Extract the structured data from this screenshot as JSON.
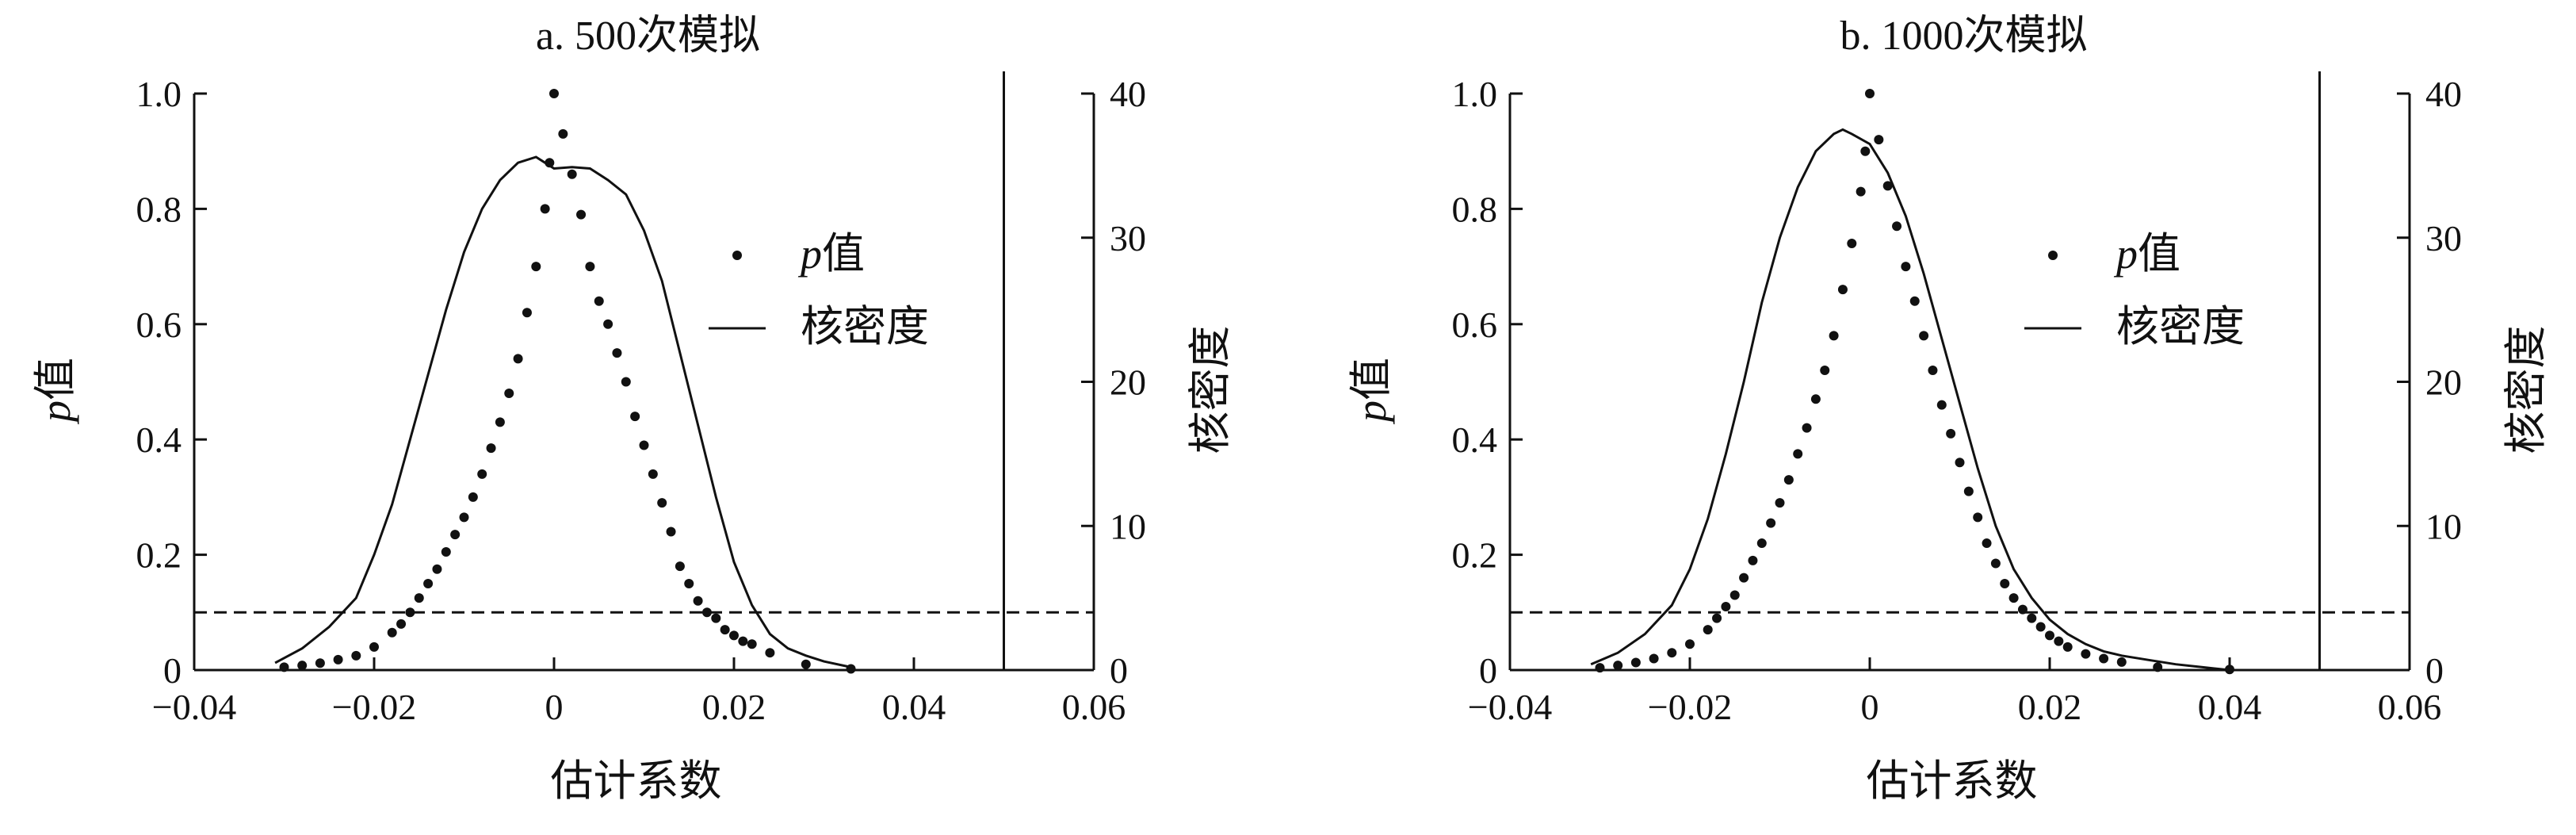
{
  "chart_data": [
    {
      "type": "scatter",
      "title": "a. 500次模拟",
      "xlabel": "估计系数",
      "ylabel_left_italic": "p",
      "ylabel_left_rest": "值",
      "ylabel_right": "核密度",
      "xlim": [
        -0.04,
        0.06
      ],
      "ylim_left": [
        0,
        1.0
      ],
      "ylim_right": [
        0,
        40
      ],
      "x_ticks": [
        "−0.04",
        "−0.02",
        "0",
        "0.02",
        "0.04",
        "0.06"
      ],
      "x_tick_values": [
        -0.04,
        -0.02,
        0,
        0.02,
        0.04,
        0.06
      ],
      "y_ticks_left": [
        "0",
        "0.2",
        "0.4",
        "0.6",
        "0.8",
        "1.0"
      ],
      "y_tick_values_left": [
        0,
        0.2,
        0.4,
        0.6,
        0.8,
        1.0
      ],
      "y_ticks_right": [
        "0",
        "10",
        "20",
        "30",
        "40"
      ],
      "y_tick_values_right": [
        0,
        10,
        20,
        30,
        40
      ],
      "reference_hline_p": 0.1,
      "reference_vline_x": 0.05,
      "legend_position": "right",
      "series": [
        {
          "name": "值",
          "name_italic_prefix": "p",
          "kind": "scatter",
          "axis": "left",
          "points": [
            [
              -0.03,
              0.005
            ],
            [
              -0.028,
              0.008
            ],
            [
              -0.026,
              0.012
            ],
            [
              -0.024,
              0.018
            ],
            [
              -0.022,
              0.025
            ],
            [
              -0.02,
              0.04
            ],
            [
              -0.018,
              0.065
            ],
            [
              -0.017,
              0.08
            ],
            [
              -0.016,
              0.1
            ],
            [
              -0.015,
              0.125
            ],
            [
              -0.014,
              0.15
            ],
            [
              -0.013,
              0.175
            ],
            [
              -0.012,
              0.205
            ],
            [
              -0.011,
              0.235
            ],
            [
              -0.01,
              0.265
            ],
            [
              -0.009,
              0.3
            ],
            [
              -0.008,
              0.34
            ],
            [
              -0.007,
              0.385
            ],
            [
              -0.006,
              0.43
            ],
            [
              -0.005,
              0.48
            ],
            [
              -0.004,
              0.54
            ],
            [
              -0.003,
              0.62
            ],
            [
              -0.002,
              0.7
            ],
            [
              -0.001,
              0.8
            ],
            [
              -0.0005,
              0.88
            ],
            [
              0.0,
              1.0
            ],
            [
              0.001,
              0.93
            ],
            [
              0.002,
              0.86
            ],
            [
              0.003,
              0.79
            ],
            [
              0.004,
              0.7
            ],
            [
              0.005,
              0.64
            ],
            [
              0.006,
              0.6
            ],
            [
              0.007,
              0.55
            ],
            [
              0.008,
              0.5
            ],
            [
              0.009,
              0.44
            ],
            [
              0.01,
              0.39
            ],
            [
              0.011,
              0.34
            ],
            [
              0.012,
              0.29
            ],
            [
              0.013,
              0.24
            ],
            [
              0.014,
              0.18
            ],
            [
              0.015,
              0.15
            ],
            [
              0.016,
              0.12
            ],
            [
              0.017,
              0.1
            ],
            [
              0.018,
              0.09
            ],
            [
              0.019,
              0.07
            ],
            [
              0.02,
              0.06
            ],
            [
              0.021,
              0.05
            ],
            [
              0.022,
              0.045
            ],
            [
              0.024,
              0.03
            ],
            [
              0.028,
              0.01
            ],
            [
              0.033,
              0.002
            ]
          ]
        },
        {
          "name": "核密度",
          "kind": "line",
          "axis": "right",
          "points": [
            [
              -0.031,
              0.5
            ],
            [
              -0.028,
              1.5
            ],
            [
              -0.025,
              3.0
            ],
            [
              -0.022,
              5.0
            ],
            [
              -0.02,
              8.0
            ],
            [
              -0.018,
              11.5
            ],
            [
              -0.016,
              16.0
            ],
            [
              -0.014,
              20.5
            ],
            [
              -0.012,
              25.0
            ],
            [
              -0.01,
              29.0
            ],
            [
              -0.008,
              32.0
            ],
            [
              -0.006,
              34.0
            ],
            [
              -0.004,
              35.2
            ],
            [
              -0.002,
              35.6
            ],
            [
              -0.001,
              35.2
            ],
            [
              0.0,
              34.8
            ],
            [
              0.002,
              34.9
            ],
            [
              0.004,
              34.8
            ],
            [
              0.006,
              34.0
            ],
            [
              0.008,
              33.0
            ],
            [
              0.01,
              30.5
            ],
            [
              0.012,
              27.0
            ],
            [
              0.014,
              22.0
            ],
            [
              0.016,
              17.0
            ],
            [
              0.018,
              12.0
            ],
            [
              0.02,
              7.5
            ],
            [
              0.022,
              4.5
            ],
            [
              0.024,
              2.5
            ],
            [
              0.026,
              1.5
            ],
            [
              0.028,
              1.0
            ],
            [
              0.03,
              0.6
            ],
            [
              0.033,
              0.2
            ]
          ]
        }
      ]
    },
    {
      "type": "scatter",
      "title": "b. 1000次模拟",
      "xlabel": "估计系数",
      "ylabel_left_italic": "p",
      "ylabel_left_rest": "值",
      "ylabel_right": "核密度",
      "xlim": [
        -0.04,
        0.06
      ],
      "ylim_left": [
        0,
        1.0
      ],
      "ylim_right": [
        0,
        40
      ],
      "x_ticks": [
        "−0.04",
        "−0.02",
        "0",
        "0.02",
        "0.04",
        "0.06"
      ],
      "x_tick_values": [
        -0.04,
        -0.02,
        0,
        0.02,
        0.04,
        0.06
      ],
      "y_ticks_left": [
        "0",
        "0.2",
        "0.4",
        "0.6",
        "0.8",
        "1.0"
      ],
      "y_tick_values_left": [
        0,
        0.2,
        0.4,
        0.6,
        0.8,
        1.0
      ],
      "y_ticks_right": [
        "0",
        "10",
        "20",
        "30",
        "40"
      ],
      "y_tick_values_right": [
        0,
        10,
        20,
        30,
        40
      ],
      "reference_hline_p": 0.1,
      "reference_vline_x": 0.05,
      "legend_position": "right",
      "series": [
        {
          "name": "值",
          "name_italic_prefix": "p",
          "kind": "scatter",
          "axis": "left",
          "points": [
            [
              -0.03,
              0.004
            ],
            [
              -0.028,
              0.008
            ],
            [
              -0.026,
              0.013
            ],
            [
              -0.024,
              0.02
            ],
            [
              -0.022,
              0.03
            ],
            [
              -0.02,
              0.045
            ],
            [
              -0.018,
              0.07
            ],
            [
              -0.017,
              0.09
            ],
            [
              -0.016,
              0.11
            ],
            [
              -0.015,
              0.13
            ],
            [
              -0.014,
              0.16
            ],
            [
              -0.013,
              0.19
            ],
            [
              -0.012,
              0.22
            ],
            [
              -0.011,
              0.255
            ],
            [
              -0.01,
              0.29
            ],
            [
              -0.009,
              0.33
            ],
            [
              -0.008,
              0.375
            ],
            [
              -0.007,
              0.42
            ],
            [
              -0.006,
              0.47
            ],
            [
              -0.005,
              0.52
            ],
            [
              -0.004,
              0.58
            ],
            [
              -0.003,
              0.66
            ],
            [
              -0.002,
              0.74
            ],
            [
              -0.001,
              0.83
            ],
            [
              -0.0005,
              0.9
            ],
            [
              0.0,
              1.0
            ],
            [
              0.001,
              0.92
            ],
            [
              0.002,
              0.84
            ],
            [
              0.003,
              0.77
            ],
            [
              0.004,
              0.7
            ],
            [
              0.005,
              0.64
            ],
            [
              0.006,
              0.58
            ],
            [
              0.007,
              0.52
            ],
            [
              0.008,
              0.46
            ],
            [
              0.009,
              0.41
            ],
            [
              0.01,
              0.36
            ],
            [
              0.011,
              0.31
            ],
            [
              0.012,
              0.265
            ],
            [
              0.013,
              0.22
            ],
            [
              0.014,
              0.185
            ],
            [
              0.015,
              0.15
            ],
            [
              0.016,
              0.125
            ],
            [
              0.017,
              0.105
            ],
            [
              0.018,
              0.09
            ],
            [
              0.019,
              0.075
            ],
            [
              0.02,
              0.06
            ],
            [
              0.021,
              0.05
            ],
            [
              0.022,
              0.04
            ],
            [
              0.024,
              0.028
            ],
            [
              0.026,
              0.02
            ],
            [
              0.028,
              0.014
            ],
            [
              0.032,
              0.005
            ],
            [
              0.04,
              0.001
            ]
          ]
        },
        {
          "name": "核密度",
          "kind": "line",
          "axis": "right",
          "points": [
            [
              -0.031,
              0.4
            ],
            [
              -0.028,
              1.2
            ],
            [
              -0.025,
              2.5
            ],
            [
              -0.022,
              4.5
            ],
            [
              -0.02,
              7.0
            ],
            [
              -0.018,
              10.5
            ],
            [
              -0.016,
              15.0
            ],
            [
              -0.014,
              20.0
            ],
            [
              -0.012,
              25.5
            ],
            [
              -0.01,
              30.0
            ],
            [
              -0.008,
              33.5
            ],
            [
              -0.006,
              36.0
            ],
            [
              -0.004,
              37.2
            ],
            [
              -0.003,
              37.5
            ],
            [
              -0.002,
              37.2
            ],
            [
              0.0,
              36.5
            ],
            [
              0.002,
              34.5
            ],
            [
              0.004,
              31.5
            ],
            [
              0.006,
              27.5
            ],
            [
              0.008,
              23.0
            ],
            [
              0.01,
              18.5
            ],
            [
              0.012,
              14.0
            ],
            [
              0.014,
              10.0
            ],
            [
              0.016,
              7.0
            ],
            [
              0.018,
              5.0
            ],
            [
              0.02,
              3.5
            ],
            [
              0.022,
              2.5
            ],
            [
              0.024,
              1.8
            ],
            [
              0.026,
              1.3
            ],
            [
              0.028,
              1.0
            ],
            [
              0.031,
              0.7
            ],
            [
              0.034,
              0.4
            ],
            [
              0.037,
              0.2
            ],
            [
              0.04,
              0.0
            ]
          ]
        }
      ]
    }
  ]
}
